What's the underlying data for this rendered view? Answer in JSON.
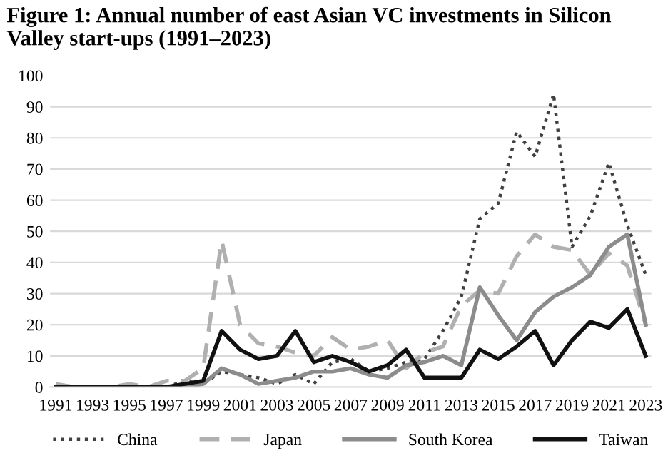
{
  "chart_data": {
    "type": "line",
    "title": "Figure 1: Annual number of east Asian VC investments in Silicon Valley start-ups (1991–2023)",
    "categories": [
      "1991",
      null,
      "1993",
      null,
      "1995",
      null,
      "1997",
      null,
      "1999",
      null,
      "2001",
      null,
      "2003",
      null,
      "2005",
      null,
      "2007",
      null,
      "2009",
      null,
      "2011",
      null,
      "2013",
      null,
      "2015",
      null,
      "2017",
      null,
      "2019",
      null,
      "2021",
      null,
      "2023"
    ],
    "series": [
      {
        "name": "China",
        "color": "#404040",
        "line_style": "dotted",
        "values": [
          0,
          0,
          0,
          0,
          0,
          0,
          0,
          2,
          1,
          5,
          4,
          3,
          1,
          4,
          1,
          8,
          9,
          5,
          6,
          8,
          9,
          18,
          29,
          54,
          59,
          82,
          74,
          94,
          45,
          55,
          72,
          52,
          36
        ]
      },
      {
        "name": "Japan",
        "color": "#b0b0b0",
        "line_style": "dashed",
        "values": [
          1,
          0,
          0,
          0,
          1,
          0,
          2,
          2,
          6,
          47,
          20,
          14,
          13,
          11,
          10,
          16,
          12,
          13,
          15,
          6,
          11,
          13,
          26,
          31,
          30,
          42,
          49,
          45,
          44,
          36,
          43,
          39,
          20
        ]
      },
      {
        "name": "South Korea",
        "color": "#8c8c8c",
        "line_style": "solid",
        "values": [
          0,
          0,
          0,
          0,
          0,
          0,
          0,
          0,
          1,
          6,
          4,
          1,
          2,
          3,
          5,
          5,
          6,
          4,
          3,
          7,
          8,
          10,
          7,
          32,
          23,
          15,
          24,
          29,
          32,
          36,
          45,
          49,
          20
        ]
      },
      {
        "name": "Taiwan",
        "color": "#111111",
        "line_style": "solid",
        "values": [
          0,
          0,
          0,
          0,
          0,
          0,
          0,
          1,
          2,
          18,
          12,
          9,
          10,
          18,
          8,
          10,
          8,
          5,
          7,
          12,
          3,
          3,
          3,
          12,
          9,
          13,
          18,
          7,
          15,
          21,
          19,
          25,
          10
        ]
      }
    ],
    "ylim": [
      0,
      100
    ],
    "yticks": [
      0,
      10,
      20,
      30,
      40,
      50,
      60,
      70,
      80,
      90,
      100
    ],
    "grid": "y",
    "legend": "bottom"
  }
}
